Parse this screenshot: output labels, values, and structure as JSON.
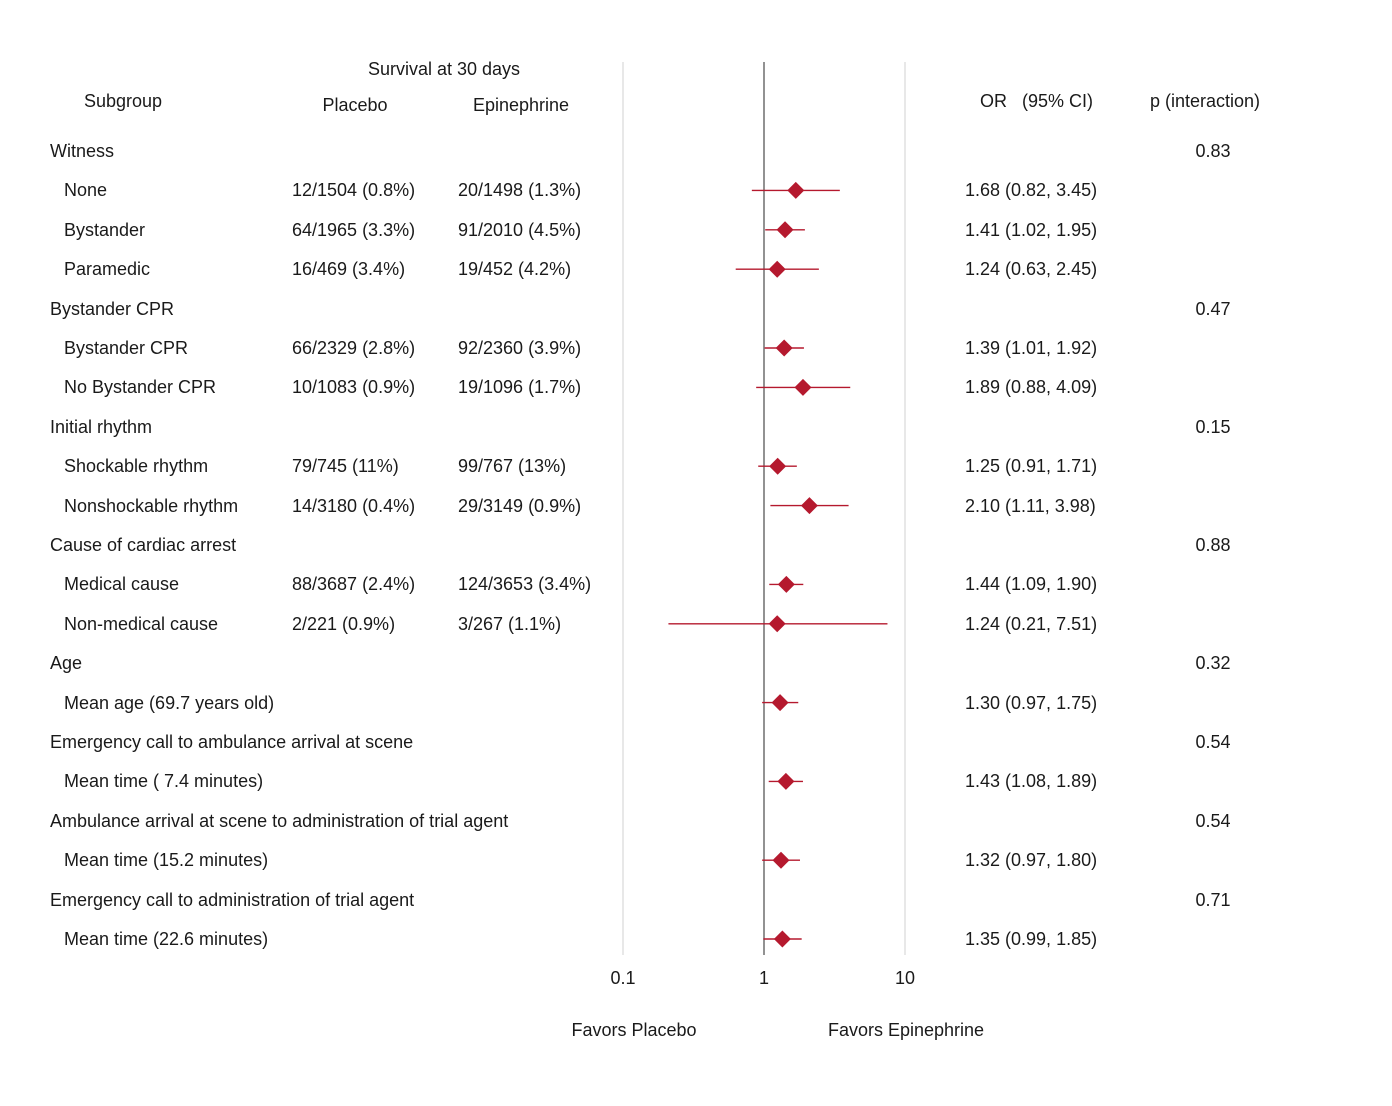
{
  "header": {
    "survival_label": "Survival at 30 days",
    "subgroup": "Subgroup",
    "placebo": "Placebo",
    "epinephrine": "Epinephrine",
    "or": "OR",
    "ci": "(95% CI)",
    "p_interaction": "p (interaction)"
  },
  "footer": {
    "favors_left": "Favors Placebo",
    "favors_right": "Favors Epinephrine"
  },
  "chart_data": {
    "type": "forest",
    "x_scale": "log",
    "x_ticks": [
      {
        "value": 0.1,
        "label": "0.1"
      },
      {
        "value": 1,
        "label": "1"
      },
      {
        "value": 10,
        "label": "10"
      }
    ],
    "reference_line": 1,
    "marker_color": "#b5192e",
    "rows": [
      {
        "kind": "header",
        "label": "Witness",
        "p": "0.83"
      },
      {
        "kind": "item",
        "label": "None",
        "placebo": "12/1504 (0.8%)",
        "epinephrine": "20/1498 (1.3%)",
        "or": 1.68,
        "lo": 0.82,
        "hi": 3.45,
        "or_text": "1.68 (0.82, 3.45)"
      },
      {
        "kind": "item",
        "label": "Bystander",
        "placebo": "64/1965 (3.3%)",
        "epinephrine": "91/2010 (4.5%)",
        "or": 1.41,
        "lo": 1.02,
        "hi": 1.95,
        "or_text": "1.41 (1.02, 1.95)"
      },
      {
        "kind": "item",
        "label": "Paramedic",
        "placebo": "16/469 (3.4%)",
        "epinephrine": "19/452 (4.2%)",
        "or": 1.24,
        "lo": 0.63,
        "hi": 2.45,
        "or_text": "1.24 (0.63, 2.45)"
      },
      {
        "kind": "header",
        "label": "Bystander CPR",
        "p": "0.47"
      },
      {
        "kind": "item",
        "label": "Bystander CPR",
        "placebo": "66/2329 (2.8%)",
        "epinephrine": "92/2360 (3.9%)",
        "or": 1.39,
        "lo": 1.01,
        "hi": 1.92,
        "or_text": "1.39 (1.01, 1.92)"
      },
      {
        "kind": "item",
        "label": "No Bystander CPR",
        "placebo": "10/1083 (0.9%)",
        "epinephrine": "19/1096 (1.7%)",
        "or": 1.89,
        "lo": 0.88,
        "hi": 4.09,
        "or_text": "1.89 (0.88, 4.09)"
      },
      {
        "kind": "header",
        "label": "Initial rhythm",
        "p": "0.15"
      },
      {
        "kind": "item",
        "label": "Shockable rhythm",
        "placebo": "79/745 (11%)",
        "epinephrine": "99/767 (13%)",
        "or": 1.25,
        "lo": 0.91,
        "hi": 1.71,
        "or_text": "1.25 (0.91, 1.71)"
      },
      {
        "kind": "item",
        "label": "Nonshockable rhythm",
        "placebo": "14/3180 (0.4%)",
        "epinephrine": "29/3149 (0.9%)",
        "or": 2.1,
        "lo": 1.11,
        "hi": 3.98,
        "or_text": "2.10 (1.11, 3.98)"
      },
      {
        "kind": "header",
        "label": "Cause of cardiac arrest",
        "p": "0.88"
      },
      {
        "kind": "item",
        "label": "Medical cause",
        "placebo": "88/3687 (2.4%)",
        "epinephrine": "124/3653 (3.4%)",
        "or": 1.44,
        "lo": 1.09,
        "hi": 1.9,
        "or_text": "1.44 (1.09, 1.90)"
      },
      {
        "kind": "item",
        "label": "Non-medical cause",
        "placebo": "2/221 (0.9%)",
        "epinephrine": "3/267 (1.1%)",
        "or": 1.24,
        "lo": 0.21,
        "hi": 7.51,
        "or_text": "1.24 (0.21, 7.51)"
      },
      {
        "kind": "header",
        "label": "Age",
        "p": "0.32"
      },
      {
        "kind": "item",
        "label": "Mean age (69.7 years old)",
        "placebo": "",
        "epinephrine": "",
        "or": 1.3,
        "lo": 0.97,
        "hi": 1.75,
        "or_text": "1.30 (0.97, 1.75)"
      },
      {
        "kind": "header",
        "label": "Emergency call to ambulance arrival at scene",
        "p": "0.54"
      },
      {
        "kind": "item",
        "label": "Mean time ( 7.4 minutes)",
        "placebo": "",
        "epinephrine": "",
        "or": 1.43,
        "lo": 1.08,
        "hi": 1.89,
        "or_text": "1.43 (1.08, 1.89)"
      },
      {
        "kind": "header",
        "label": "Ambulance arrival at scene to administration of trial agent",
        "p": "0.54"
      },
      {
        "kind": "item",
        "label": "Mean time (15.2 minutes)",
        "placebo": "",
        "epinephrine": "",
        "or": 1.32,
        "lo": 0.97,
        "hi": 1.8,
        "or_text": "1.32 (0.97, 1.80)"
      },
      {
        "kind": "header",
        "label": "Emergency call to administration of trial agent",
        "p": "0.71"
      },
      {
        "kind": "item",
        "label": "Mean time (22.6 minutes)",
        "placebo": "",
        "epinephrine": "",
        "or": 1.35,
        "lo": 0.99,
        "hi": 1.85,
        "or_text": "1.35 (0.99, 1.85)"
      }
    ]
  }
}
